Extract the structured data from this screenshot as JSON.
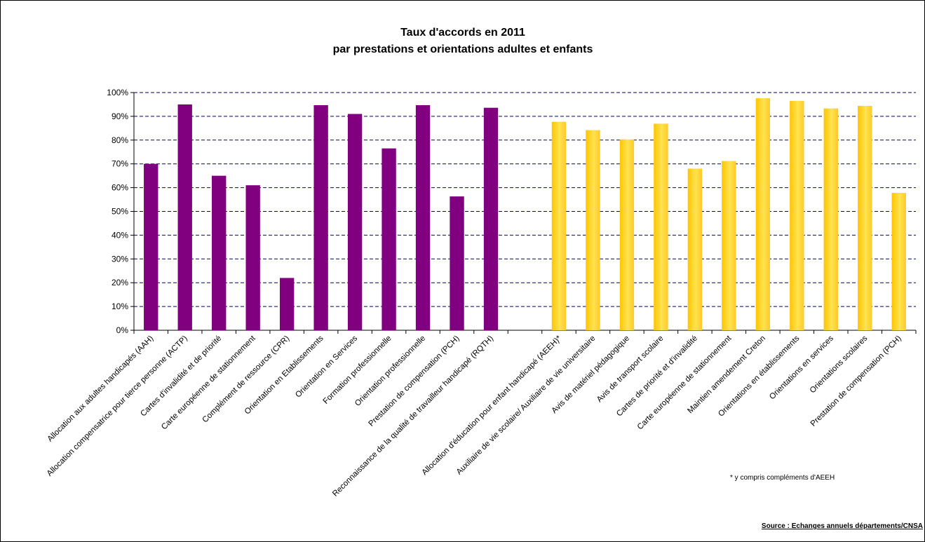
{
  "chart_data": {
    "type": "bar",
    "title": "Taux d'accords en 2011",
    "subtitle": "par prestations et orientations adultes et enfants",
    "ylim": [
      0,
      100
    ],
    "yticks": [
      "0%",
      "10%",
      "20%",
      "30%",
      "40%",
      "50%",
      "60%",
      "70%",
      "80%",
      "90%",
      "100%"
    ],
    "grid": true,
    "colors": {
      "adultes": "#800080",
      "enfants": "#FFD21E",
      "gridline": "#000080"
    },
    "groups": [
      {
        "key": "adultes",
        "categories": [
          "Allocation aux adultes handicapés (AAH)",
          "Allocation compensatrice pour tierce personne (ACTP)",
          "Cartes d'invalidité et de priorité",
          "Carte européenne de stationnement",
          "Complément de ressource (CPR)",
          "Orientation en Etablissements",
          "Orientation en Services",
          "Formation professionnelle",
          "Orientation professionnelle",
          "Prestation de compensation (PCH)",
          "Reconnaissance de la qualité de travailleur handicapé (RQTH)"
        ],
        "values": [
          70,
          95,
          65,
          61,
          22,
          94.7,
          91,
          76.5,
          94.7,
          56.3,
          93.6
        ]
      },
      {
        "key": "enfants",
        "categories": [
          "Allocation d'éducation pour enfant handicapé (AEEH)*",
          "Auxiliaire de vie scolaire/ Auxiliaire de vie universitaire",
          "Avis de matériel pédagogique",
          "Avis de transport scolaire",
          "Cartes de priorité et d'invalidité",
          "Carte européenne de stationnement",
          "Maintien amendement Creton",
          "Orientations en établissements",
          "Orientations en services",
          "Orientations scolaires",
          "Prestation de compensation (PCH)"
        ],
        "values": [
          87.7,
          84.2,
          80.3,
          86.9,
          68,
          71.2,
          97.6,
          96.5,
          93.3,
          94.4,
          57.8
        ]
      }
    ],
    "annotations": {
      "footnote": "* y compris compléments d'AEEH",
      "source": "Source : Echanges annuels départements/CNSA"
    }
  }
}
